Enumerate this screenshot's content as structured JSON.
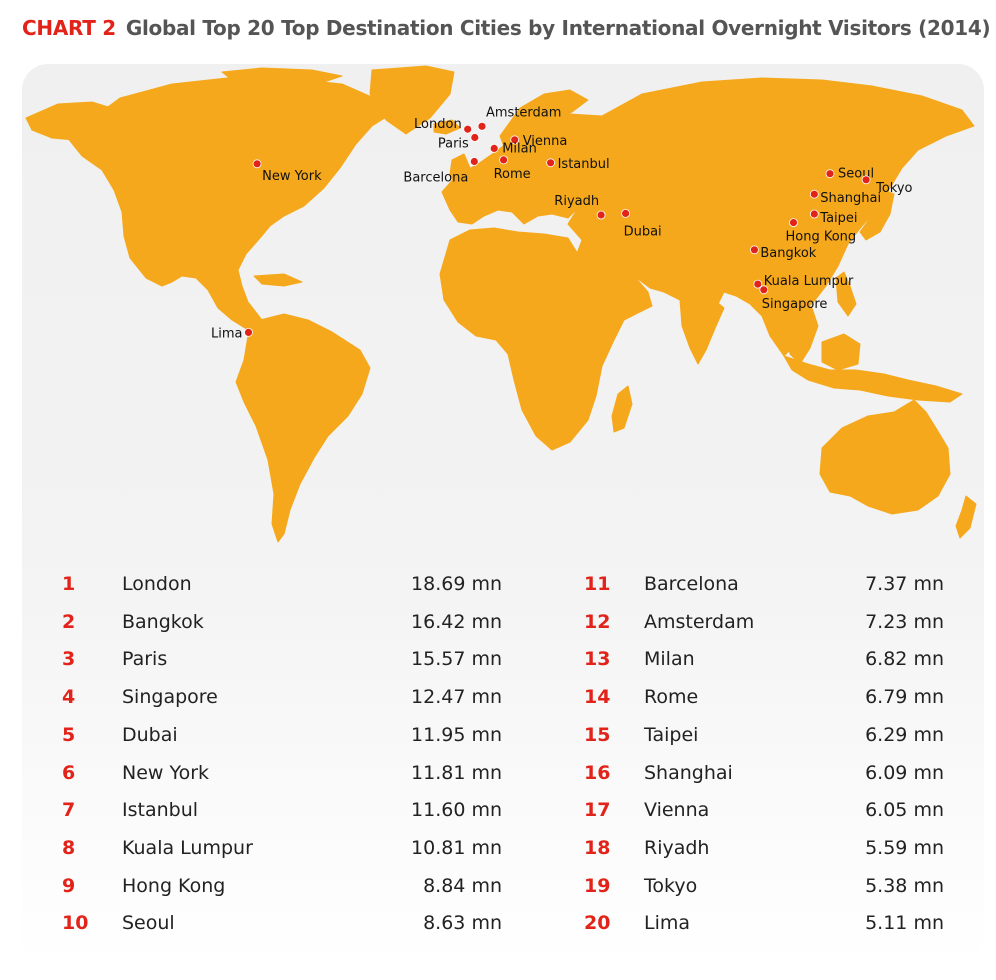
{
  "header": {
    "chart_label": "CHART 2",
    "title": "Global Top 20 Top Destination Cities by International Overnight Visitors (2014)"
  },
  "colors": {
    "land": "#f5a81c",
    "city_dot": "#e2231a",
    "rank_number": "#e2231a",
    "title": "#555555"
  },
  "map": {
    "cities": [
      {
        "name": "London",
        "label": "London",
        "lat": 51.5,
        "lon": -0.1
      },
      {
        "name": "Amsterdam",
        "label": "Amsterdam",
        "lat": 52.4,
        "lon": 4.9
      },
      {
        "name": "Paris",
        "label": "Paris",
        "lat": 48.9,
        "lon": 2.4
      },
      {
        "name": "Vienna",
        "label": "Vienna",
        "lat": 48.2,
        "lon": 16.4
      },
      {
        "name": "Milan",
        "label": "Milan",
        "lat": 45.5,
        "lon": 9.2
      },
      {
        "name": "Barcelona",
        "label": "Barcelona",
        "lat": 41.4,
        "lon": 2.2
      },
      {
        "name": "Rome",
        "label": "Rome",
        "lat": 41.9,
        "lon": 12.5
      },
      {
        "name": "Istanbul",
        "label": "Istanbul",
        "lat": 41.0,
        "lon": 29.0
      },
      {
        "name": "New York",
        "label": "New York",
        "lat": 40.7,
        "lon": -74.0
      },
      {
        "name": "Riyadh",
        "label": "Riyadh",
        "lat": 24.7,
        "lon": 46.7
      },
      {
        "name": "Dubai",
        "label": "Dubai",
        "lat": 25.2,
        "lon": 55.3
      },
      {
        "name": "Seoul",
        "label": "Seoul",
        "lat": 37.6,
        "lon": 127.0
      },
      {
        "name": "Tokyo",
        "label": "Tokyo",
        "lat": 35.7,
        "lon": 139.7
      },
      {
        "name": "Shanghai",
        "label": "Shanghai",
        "lat": 31.2,
        "lon": 121.5
      },
      {
        "name": "Taipei",
        "label": "Taipei",
        "lat": 25.0,
        "lon": 121.5
      },
      {
        "name": "Hong Kong",
        "label": "Hong Kong",
        "lat": 22.3,
        "lon": 114.2
      },
      {
        "name": "Bangkok",
        "label": "Bangkok",
        "lat": 13.8,
        "lon": 100.5
      },
      {
        "name": "Kuala Lumpur",
        "label": "Kuala Lumpur",
        "lat": 3.1,
        "lon": 101.7
      },
      {
        "name": "Singapore",
        "label": "Singapore",
        "lat": 1.3,
        "lon": 103.8
      },
      {
        "name": "Lima",
        "label": "Lima",
        "lat": -12.0,
        "lon": -77.0
      }
    ]
  },
  "ranking": [
    {
      "rank": "1",
      "city": "London",
      "visitors": "18.69 mn"
    },
    {
      "rank": "2",
      "city": "Bangkok",
      "visitors": "16.42 mn"
    },
    {
      "rank": "3",
      "city": "Paris",
      "visitors": "15.57 mn"
    },
    {
      "rank": "4",
      "city": "Singapore",
      "visitors": "12.47 mn"
    },
    {
      "rank": "5",
      "city": "Dubai",
      "visitors": "11.95 mn"
    },
    {
      "rank": "6",
      "city": "New York",
      "visitors": "11.81 mn"
    },
    {
      "rank": "7",
      "city": "Istanbul",
      "visitors": "11.60 mn"
    },
    {
      "rank": "8",
      "city": "Kuala Lumpur",
      "visitors": "10.81 mn"
    },
    {
      "rank": "9",
      "city": "Hong Kong",
      "visitors": "8.84 mn"
    },
    {
      "rank": "10",
      "city": "Seoul",
      "visitors": "8.63 mn"
    },
    {
      "rank": "11",
      "city": "Barcelona",
      "visitors": "7.37 mn"
    },
    {
      "rank": "12",
      "city": "Amsterdam",
      "visitors": "7.23 mn"
    },
    {
      "rank": "13",
      "city": "Milan",
      "visitors": "6.82 mn"
    },
    {
      "rank": "14",
      "city": "Rome",
      "visitors": "6.79 mn"
    },
    {
      "rank": "15",
      "city": "Taipei",
      "visitors": "6.29 mn"
    },
    {
      "rank": "16",
      "city": "Shanghai",
      "visitors": "6.09 mn"
    },
    {
      "rank": "17",
      "city": "Vienna",
      "visitors": "6.05 mn"
    },
    {
      "rank": "18",
      "city": "Riyadh",
      "visitors": "5.59 mn"
    },
    {
      "rank": "19",
      "city": "Tokyo",
      "visitors": "5.38 mn"
    },
    {
      "rank": "20",
      "city": "Lima",
      "visitors": "5.11 mn"
    }
  ]
}
